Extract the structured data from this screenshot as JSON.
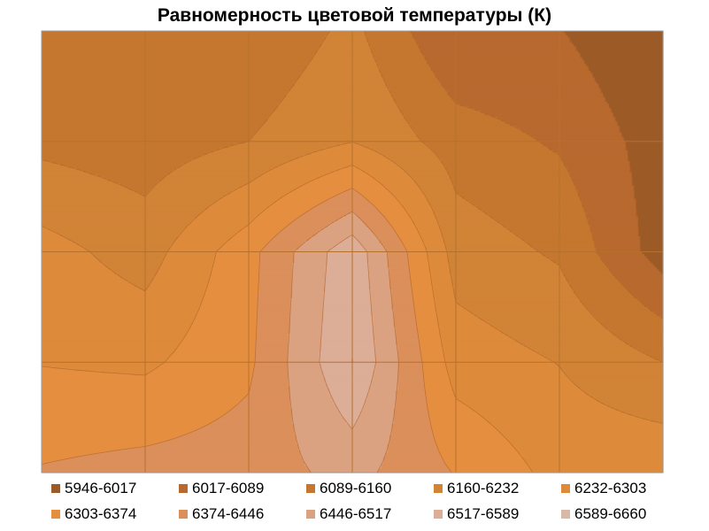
{
  "chart_data": {
    "type": "contour",
    "title": "Равномерность цветовой температуры (К)",
    "grid": true,
    "legend_position": "bottom",
    "colors": {
      "plot_border": "#9a9a9a",
      "grid": "#b5712c",
      "contour_line": "#b0652a"
    },
    "levels": [
      {
        "label": "5946-6017",
        "min": 5946,
        "max": 6017,
        "color": "#9c5a27"
      },
      {
        "label": "6017-6089",
        "min": 6017,
        "max": 6089,
        "color": "#b8692e"
      },
      {
        "label": "6089-6160",
        "min": 6089,
        "max": 6160,
        "color": "#c5772f"
      },
      {
        "label": "6160-6232",
        "min": 6160,
        "max": 6232,
        "color": "#d18336"
      },
      {
        "label": "6232-6303",
        "min": 6232,
        "max": 6303,
        "color": "#dd8a3b"
      },
      {
        "label": "6303-6374",
        "min": 6303,
        "max": 6374,
        "color": "#e58e40"
      },
      {
        "label": "6374-6446",
        "min": 6374,
        "max": 6446,
        "color": "#db8f5b"
      },
      {
        "label": "6446-6517",
        "min": 6446,
        "max": 6517,
        "color": "#dba282"
      },
      {
        "label": "6517-6589",
        "min": 6517,
        "max": 6589,
        "color": "#dcad97"
      },
      {
        "label": "6589-6660",
        "min": 6589,
        "max": 6660,
        "color": "#d8b9a8"
      }
    ],
    "x": [
      1,
      2,
      3,
      4,
      5,
      6,
      7
    ],
    "y": [
      1,
      2,
      3,
      4,
      5
    ],
    "values": [
      [
        6150,
        6140,
        6095,
        6178,
        6020,
        6020,
        5945
      ],
      [
        6140,
        6120,
        6160,
        6230,
        6125,
        6080,
        5980
      ],
      [
        6260,
        6200,
        6350,
        6570,
        6200,
        6150,
        5980
      ],
      [
        6300,
        6290,
        6360,
        6590,
        6270,
        6230,
        6160
      ],
      [
        6380,
        6400,
        6410,
        6470,
        6370,
        6280,
        6290
      ]
    ]
  }
}
